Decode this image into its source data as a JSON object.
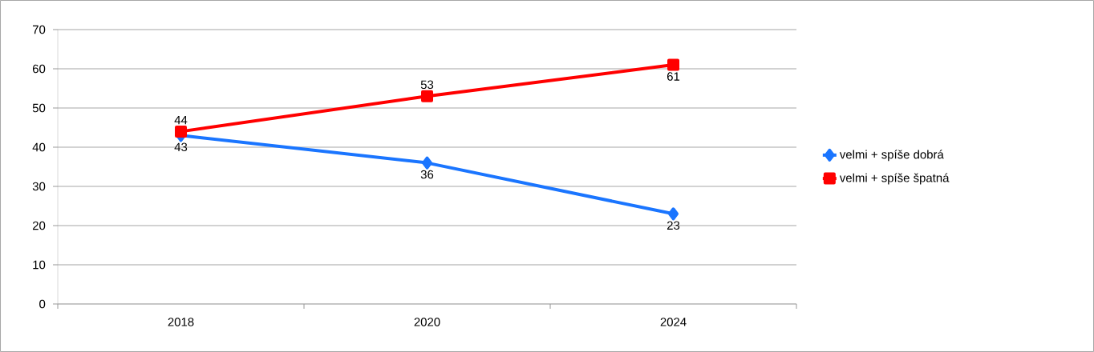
{
  "chart_data": {
    "type": "line",
    "categories": [
      "2018",
      "2020",
      "2024"
    ],
    "series": [
      {
        "name": "velmi + spíše dobrá",
        "color": "#1a75ff",
        "marker": "diamond",
        "values": [
          43,
          36,
          23
        ]
      },
      {
        "name": "velmi + spíše špatná",
        "color": "#ff0000",
        "marker": "square",
        "values": [
          44,
          53,
          61
        ]
      }
    ],
    "ylim": [
      0,
      70
    ],
    "yticks": [
      0,
      10,
      20,
      30,
      40,
      50,
      60,
      70
    ],
    "grid": "y",
    "legend": "right",
    "data_labels": true,
    "line_style": "solid"
  }
}
